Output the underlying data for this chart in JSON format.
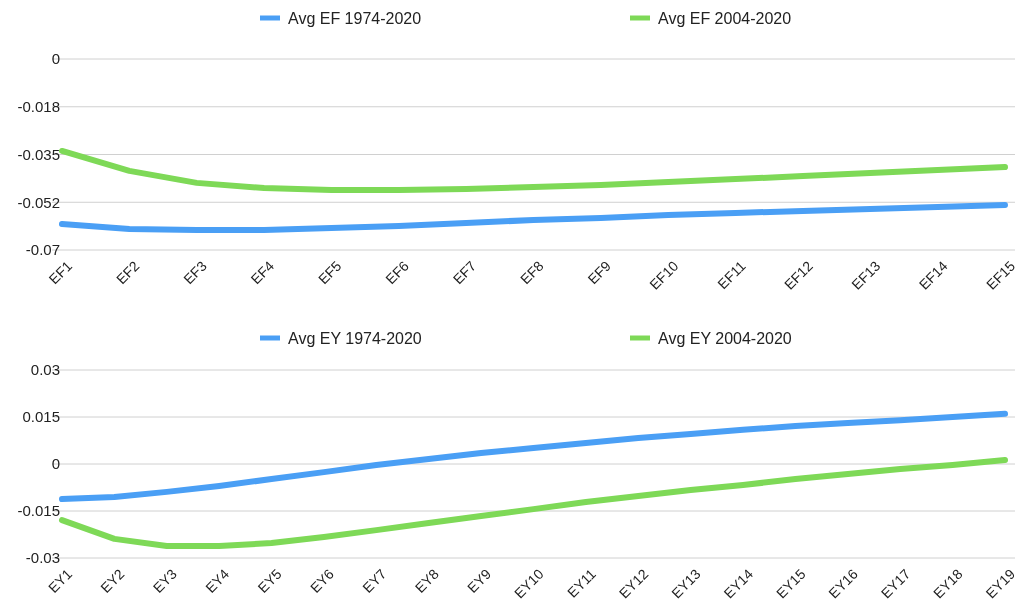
{
  "chart_data": [
    {
      "type": "line",
      "categories": [
        "EF1",
        "EF2",
        "EF3",
        "EF4",
        "EF5",
        "EF6",
        "EF7",
        "EF8",
        "EF9",
        "EF10",
        "EF11",
        "EF12",
        "EF13",
        "EF14",
        "EF15"
      ],
      "series": [
        {
          "name": "Avg EF 1974-2020",
          "color": "#4a9ff5",
          "values": [
            -0.0605,
            -0.0623,
            -0.0627,
            -0.0627,
            -0.0619,
            -0.0612,
            -0.0601,
            -0.059,
            -0.0583,
            -0.0572,
            -0.0564,
            -0.0557,
            -0.055,
            -0.0542,
            -0.0535
          ]
        },
        {
          "name": "Avg EF 2004-2020",
          "color": "#7ed957",
          "values": [
            -0.0337,
            -0.041,
            -0.0454,
            -0.0473,
            -0.048,
            -0.048,
            -0.0476,
            -0.0469,
            -0.0462,
            -0.0451,
            -0.044,
            -0.0429,
            -0.0418,
            -0.0407,
            -0.0396
          ]
        }
      ],
      "ylim": [
        -0.07,
        0
      ],
      "yticks": [
        {
          "value": -0.07,
          "label": "-0.07"
        },
        {
          "value": -0.0525,
          "label": "-0.052"
        },
        {
          "value": -0.035,
          "label": "-0.035"
        },
        {
          "value": -0.0175,
          "label": "-0.018"
        },
        {
          "value": 0,
          "label": "0"
        }
      ],
      "grid": "y",
      "legend": "top",
      "marker": "none",
      "line_style": "solid"
    },
    {
      "type": "line",
      "categories": [
        "EY1",
        "EY2",
        "EY3",
        "EY4",
        "EY5",
        "EY6",
        "EY7",
        "EY8",
        "EY9",
        "EY10",
        "EY11",
        "EY12",
        "EY13",
        "EY14",
        "EY15",
        "EY16",
        "EY17",
        "EY18",
        "EY19"
      ],
      "series": [
        {
          "name": "Avg EY 1974-2020",
          "color": "#4a9ff5",
          "values": [
            -0.0112,
            -0.0105,
            -0.0089,
            -0.007,
            -0.0048,
            -0.0026,
            -0.0003,
            0.0016,
            0.0035,
            0.0051,
            0.0067,
            0.0083,
            0.0096,
            0.0109,
            0.0121,
            0.0131,
            0.014,
            0.015,
            0.016
          ]
        },
        {
          "name": "Avg EY 2004-2020",
          "color": "#7ed957",
          "values": [
            -0.0179,
            -0.0239,
            -0.0262,
            -0.0262,
            -0.0252,
            -0.0233,
            -0.0211,
            -0.0188,
            -0.0166,
            -0.0144,
            -0.0121,
            -0.0102,
            -0.0083,
            -0.0067,
            -0.0048,
            -0.0032,
            -0.0016,
            -0.0003,
            0.0013
          ]
        }
      ],
      "ylim": [
        -0.03,
        0.03
      ],
      "yticks": [
        -0.03,
        -0.015,
        0,
        0.015,
        0.03
      ],
      "grid": "y",
      "legend": "top",
      "marker": "none",
      "line_style": "solid"
    }
  ]
}
